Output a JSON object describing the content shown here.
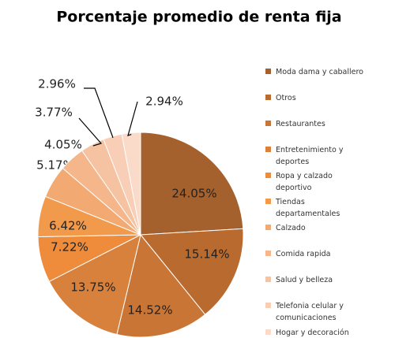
{
  "chart_data": {
    "type": "pie",
    "title": "Porcentaje promedio de renta fija",
    "categories": [
      "Moda dama y caballero",
      "Otros",
      "Restaurantes",
      "Entretenimiento y deportes",
      "Ropa y calzado deportivo",
      "Tiendas departamentales",
      "Calzado",
      "Comida rapida",
      "Salud y belleza",
      "Telefonia celular y comunicaciones",
      "Hogar y decoración"
    ],
    "values": [
      24.05,
      15.14,
      14.52,
      13.75,
      7.22,
      6.42,
      5.17,
      4.05,
      3.77,
      2.96,
      2.94
    ],
    "value_labels": [
      "24.05%",
      "15.14%",
      "14.52%",
      "13.75%",
      "7.22%",
      "6.42%",
      "5.17%",
      "4.05%",
      "3.77%",
      "2.96%",
      "2.94%"
    ],
    "colors": [
      "#a5612d",
      "#b86a2f",
      "#c87535",
      "#d8813c",
      "#ee8c3c",
      "#f29a4c",
      "#f3aa72",
      "#f4b68a",
      "#f6c3a2",
      "#f8ceb6",
      "#fadac9"
    ],
    "legend": "right"
  }
}
